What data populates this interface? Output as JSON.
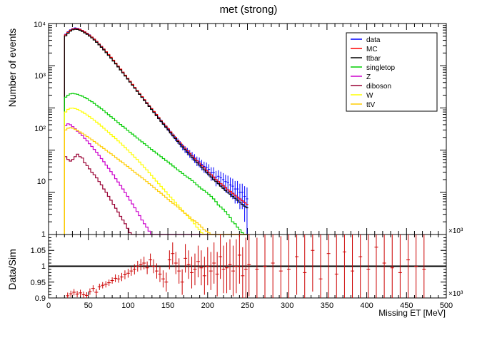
{
  "chart_data": [
    {
      "type": "line",
      "title": "met (strong)",
      "ylabel": "Number  of  events",
      "xlabel": "",
      "y_scale": "log",
      "ylim": [
        0.1,
        10000
      ],
      "xlim": [
        0,
        500000
      ],
      "x_multiplier_label": "×10³",
      "y_tick_labels": [
        "10⁴",
        "10³",
        "10²",
        "10",
        "1"
      ],
      "legend_placement": "top-right",
      "x_start": 20,
      "x_step": 3,
      "series": [
        {
          "name": "data",
          "color": "#0000ff",
          "style": "errorbar",
          "values": [
            5600,
            6400,
            7100,
            7600,
            7900,
            7700,
            7400,
            6900,
            6400,
            5900,
            5400,
            4800,
            4300,
            3800,
            3300,
            2900,
            2500,
            2150,
            1850,
            1580,
            1350,
            1150,
            980,
            830,
            700,
            590,
            500,
            420,
            355,
            300,
            254,
            215,
            183,
            155,
            132,
            112,
            95,
            81,
            69,
            58,
            49,
            42,
            36,
            31,
            26,
            22,
            19,
            16.5,
            14,
            12,
            10.5,
            9.4,
            8.3,
            7.4,
            6.5,
            5.6,
            5.3,
            4.6,
            4.1,
            3.9,
            3.5,
            2.9,
            2.9,
            2.3,
            2.4,
            2.2,
            2.0,
            1.8,
            1.7,
            1.5,
            1.4,
            1.2,
            1.2,
            1.0,
            1.0,
            0.8,
            0.7
          ]
        },
        {
          "name": "MC",
          "color": "#ff0000",
          "style": "step",
          "values": [
            5400,
            6200,
            6900,
            7400,
            7600,
            7500,
            7200,
            6800,
            6300,
            5800,
            5300,
            4750,
            4250,
            3750,
            3280,
            2860,
            2480,
            2140,
            1840,
            1580,
            1350,
            1150,
            980,
            830,
            705,
            597,
            505,
            427,
            361,
            305,
            258,
            218,
            185,
            157,
            133,
            113,
            96,
            82,
            70,
            59,
            50,
            43,
            37,
            32,
            27,
            23,
            20,
            17,
            14.8,
            12.8,
            11.1,
            9.7,
            8.4,
            7.3,
            6.4,
            5.6,
            4.9,
            4.3,
            3.8,
            3.3,
            2.9,
            2.6,
            2.3,
            2.0,
            1.8,
            1.6,
            1.45,
            1.3,
            1.15,
            1.05,
            0.95,
            0.85,
            0.77,
            0.7,
            0.63,
            0.57,
            0.52
          ]
        },
        {
          "name": "ttbar",
          "color": "#000000",
          "style": "step",
          "values": [
            5100,
            5900,
            6600,
            7100,
            7300,
            7200,
            6900,
            6500,
            6000,
            5550,
            5050,
            4550,
            4050,
            3580,
            3130,
            2730,
            2370,
            2040,
            1760,
            1510,
            1290,
            1100,
            935,
            795,
            675,
            572,
            484,
            409,
            346,
            292,
            247,
            209,
            177,
            150,
            127,
            108,
            92,
            78,
            66,
            56,
            48,
            41,
            35,
            30,
            25.5,
            21.8,
            18.7,
            16,
            13.8,
            11.9,
            10.3,
            8.9,
            7.7,
            6.7,
            5.8,
            5.1,
            4.4,
            3.9,
            3.4,
            3.0,
            2.6,
            2.3,
            2.0,
            1.8,
            1.6,
            1.4,
            1.25,
            1.1,
            1.0,
            0.9,
            0.8,
            0.72,
            0.65,
            0.58,
            0.52,
            0.47,
            0.43
          ]
        },
        {
          "name": "singletop",
          "color": "#00cc00",
          "style": "step",
          "values": [
            180,
            200,
            215,
            220,
            215,
            210,
            200,
            190,
            178,
            165,
            152,
            140,
            128,
            116,
            105,
            95,
            86,
            77,
            69,
            62,
            56,
            50,
            45,
            40.5,
            36.5,
            33,
            29.5,
            26.5,
            24,
            21.5,
            19.3,
            17.4,
            15.7,
            14.2,
            12.8,
            11.5,
            10.4,
            9.4,
            8.5,
            7.7,
            7,
            6.3,
            5.7,
            5.2,
            4.7,
            4.2,
            3.8,
            3.4,
            3.1,
            2.8,
            2.5,
            2.3,
            2.1,
            1.9,
            1.7,
            1.5,
            1.35,
            1.2,
            1.1,
            1.0,
            0.9,
            0.8,
            0.7,
            0.6,
            0.5,
            0.45,
            0.4,
            0.35,
            0.3,
            0.25,
            0.2,
            0.18,
            0.15,
            0.13,
            0.11,
            0.1,
            0.1
          ]
        },
        {
          "name": "Z",
          "color": "#cc00cc",
          "style": "step",
          "values": [
            38,
            42,
            40,
            36,
            32,
            28,
            25,
            22,
            19,
            16.5,
            14.2,
            12.2,
            10.4,
            8.9,
            7.5,
            6.3,
            5.3,
            4.4,
            3.7,
            3.1,
            2.6,
            2.1,
            1.75,
            1.45,
            1.2,
            0.98,
            0.8,
            0.65,
            0.53,
            0.43,
            0.35,
            0.28,
            0.22,
            0.18,
            0.15,
            0.12,
            0.1,
            0.1,
            0.1,
            0.1,
            0.1,
            0.1,
            0.1,
            0.1,
            0.1,
            0.1,
            0.1,
            0.1,
            0.1,
            0.1,
            0.1,
            0.1,
            0.1,
            0.1,
            0.1,
            0.1,
            0.1,
            0.1,
            0.1,
            0.1,
            0.1,
            0.1,
            0.1,
            0.1,
            0.1,
            0.1,
            0.1,
            0.1,
            0.1,
            0.1,
            0.1,
            0.1,
            0.1,
            0.1,
            0.1,
            0.1,
            0.1
          ]
        },
        {
          "name": "diboson",
          "color": "#990033",
          "style": "step",
          "values": [
            7,
            6,
            5.5,
            6,
            7,
            8,
            7,
            6.5,
            5,
            4.3,
            3.6,
            3,
            2.6,
            2.2,
            1.8,
            1.5,
            1.2,
            1,
            0.8,
            0.65,
            0.52,
            0.42,
            0.34,
            0.27,
            0.22,
            0.18,
            0.14,
            0.11,
            0.1,
            0.1,
            0.1,
            0.1,
            0.1,
            0.1,
            0.1,
            0.1,
            0.1,
            0.1,
            0.1,
            0.1,
            0.1,
            0.1,
            0.1,
            0.1,
            0.1,
            0.1,
            0.1,
            0.1,
            0.1,
            0.1,
            0.1,
            0.1,
            0.1,
            0.1,
            0.1,
            0.1,
            0.1,
            0.1,
            0.1,
            0.1,
            0.1,
            0.1,
            0.1,
            0.1,
            0.1,
            0.1,
            0.1,
            0.1,
            0.1,
            0.1,
            0.1,
            0.1,
            0.1,
            0.1,
            0.1,
            0.1,
            0.1
          ]
        },
        {
          "name": "W",
          "color": "#ffff00",
          "style": "step",
          "values": [
            80,
            92,
            98,
            99,
            96,
            92,
            86,
            80,
            74,
            68,
            62,
            56,
            51,
            46,
            41.5,
            37,
            33,
            29.5,
            26.5,
            23.5,
            21,
            18.7,
            16.6,
            14.7,
            13,
            11.5,
            10.1,
            8.9,
            7.8,
            6.8,
            6,
            5.2,
            4.5,
            3.9,
            3.4,
            2.9,
            2.5,
            2.15,
            1.85,
            1.6,
            1.38,
            1.2,
            1.03,
            0.89,
            0.77,
            0.67,
            0.58,
            0.5,
            0.43,
            0.37,
            0.32,
            0.28,
            0.24,
            0.21,
            0.18,
            0.15,
            0.13,
            0.11,
            0.1,
            0.1,
            0.1,
            0.1,
            0.1,
            0.1,
            0.1,
            0.1,
            0.1,
            0.1,
            0.1,
            0.1,
            0.1,
            0.1,
            0.1,
            0.1,
            0.1,
            0.1,
            0.1
          ]
        },
        {
          "name": "ttV",
          "color": "#ffcc00",
          "style": "step",
          "values": [
            30,
            33,
            34,
            33,
            31,
            29,
            27,
            25,
            23,
            21,
            19.3,
            17.6,
            16,
            14.6,
            13.2,
            12,
            10.9,
            9.9,
            9,
            8.2,
            7.4,
            6.7,
            6.1,
            5.5,
            5,
            4.5,
            4.1,
            3.7,
            3.3,
            3,
            2.7,
            2.45,
            2.2,
            2,
            1.8,
            1.6,
            1.45,
            1.3,
            1.17,
            1.05,
            0.95,
            0.85,
            0.76,
            0.68,
            0.61,
            0.55,
            0.5,
            0.45,
            0.4,
            0.36,
            0.32,
            0.29,
            0.26,
            0.23,
            0.21,
            0.19,
            0.17,
            0.15,
            0.13,
            0.12,
            0.11,
            0.1,
            0.1,
            0.1,
            0.1,
            0.1,
            0.1,
            0.1,
            0.1,
            0.1,
            0.1,
            0.1,
            0.1,
            0.1,
            0.1,
            0.1,
            0.1
          ]
        }
      ]
    },
    {
      "type": "scatter",
      "title": "",
      "ylabel": "Data/Sim",
      "xlabel": "Missing ET [MeV]",
      "xlim": [
        0,
        500
      ],
      "ylim": [
        0.9,
        1.1
      ],
      "x_multiplier_label": "×10³",
      "x_ticks": [
        0,
        50,
        100,
        150,
        200,
        250,
        300,
        350,
        400,
        450,
        500
      ],
      "y_tick_labels": [
        "1.05",
        "1",
        "0.95",
        "0.9"
      ],
      "y_ticks": [
        1.05,
        1.0,
        0.95,
        0.9
      ],
      "reference_line": 1.0,
      "series": [
        {
          "name": "",
          "color": "#cc0000",
          "x": [
            24,
            28,
            32,
            36,
            40,
            44,
            48,
            52,
            56,
            60,
            64,
            68,
            72,
            76,
            80,
            84,
            88,
            92,
            96,
            100,
            104,
            108,
            112,
            116,
            120,
            124,
            128,
            132,
            136,
            140,
            144,
            148,
            152,
            156,
            160,
            164,
            168,
            172,
            176,
            180,
            184,
            188,
            192,
            196,
            200,
            204,
            208,
            212,
            216,
            220,
            224,
            228,
            232,
            236,
            240,
            244,
            248,
            252,
            262,
            272,
            282,
            292,
            302,
            312,
            322,
            332,
            342,
            352,
            362,
            372,
            382,
            392,
            402,
            412,
            422,
            432,
            442,
            452,
            462,
            472
          ],
          "y": [
            0.907,
            0.913,
            0.918,
            0.912,
            0.916,
            0.91,
            0.908,
            0.92,
            0.93,
            0.918,
            0.935,
            0.94,
            0.943,
            0.948,
            0.955,
            0.962,
            0.96,
            0.966,
            0.973,
            0.978,
            0.985,
            0.99,
            1.0,
            1.005,
            1.01,
            0.995,
            1.02,
            1.0,
            0.985,
            0.975,
            0.96,
            0.95,
            1.02,
            1.04,
            1.01,
            0.985,
            0.95,
            1.025,
            1.005,
            0.98,
            0.99,
            1.015,
            0.995,
            0.97,
            1.0,
            0.985,
            1.01,
            0.975,
            1.03,
            0.99,
            0.995,
            1.005,
            0.985,
            1.0,
            1.035,
            0.97,
            0.99,
            1.005,
            0.99,
            1.0,
            1.01,
            0.985,
            0.99,
            1.03,
            0.98,
            1.05,
            0.96,
            1.04,
            0.975,
            1.045,
            0.985,
            1.03,
            0.99,
            1.06,
            1.01,
            0.995,
            0.98,
            1.02,
            1.0,
            0.99
          ],
          "err": [
            0.01,
            0.01,
            0.01,
            0.01,
            0.01,
            0.01,
            0.01,
            0.01,
            0.01,
            0.01,
            0.01,
            0.01,
            0.01,
            0.01,
            0.01,
            0.012,
            0.012,
            0.013,
            0.014,
            0.014,
            0.015,
            0.016,
            0.017,
            0.018,
            0.02,
            0.02,
            0.02,
            0.022,
            0.024,
            0.025,
            0.027,
            0.03,
            0.03,
            0.035,
            0.035,
            0.04,
            0.04,
            0.045,
            0.045,
            0.05,
            0.05,
            0.05,
            0.055,
            0.06,
            0.06,
            0.06,
            0.065,
            0.07,
            0.07,
            0.075,
            0.08,
            0.08,
            0.08,
            0.085,
            0.09,
            0.09,
            0.1,
            0.1,
            0.1,
            0.1,
            0.11,
            0.11,
            0.12,
            0.12,
            0.13,
            0.13,
            0.14,
            0.14,
            0.15,
            0.15,
            0.16,
            0.16,
            0.17,
            0.17,
            0.18,
            0.18,
            0.19,
            0.19,
            0.2,
            0.2
          ]
        }
      ]
    }
  ],
  "legend_entries": [
    {
      "label": "data",
      "color": "#0000ff"
    },
    {
      "label": "MC",
      "color": "#ff0000"
    },
    {
      "label": "ttbar",
      "color": "#000000"
    },
    {
      "label": "singletop",
      "color": "#00cc00"
    },
    {
      "label": "Z",
      "color": "#cc00cc"
    },
    {
      "label": "diboson",
      "color": "#990033"
    },
    {
      "label": "W",
      "color": "#ffff00"
    },
    {
      "label": "ttV",
      "color": "#ffcc00"
    }
  ]
}
